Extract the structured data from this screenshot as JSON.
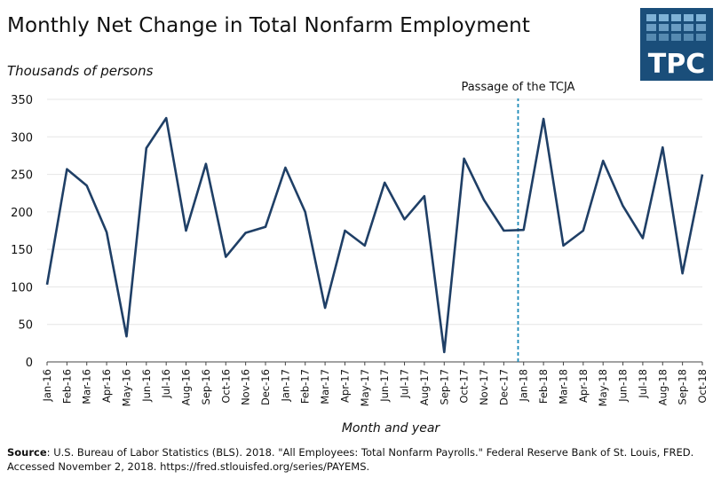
{
  "title": "Monthly Net Change in Total Nonfarm Employment",
  "logo": {
    "text": "TPC",
    "bg_color": "#1a4e7a",
    "cell_color": "#7fb2d6"
  },
  "source": {
    "label": "Source",
    "text": ": U.S. Bureau of Labor Statistics (BLS). 2018. \"All Employees: Total Nonfarm Payrolls.\" Federal Reserve Bank of St. Louis, FRED. Accessed November 2, 2018. https://fred.stlouisfed.org/series/PAYEMS."
  },
  "chart_data": {
    "type": "line",
    "title": "Monthly Net Change in Total Nonfarm Employment",
    "ylabel": "Thousands of persons",
    "xlabel": "Month and year",
    "ylim": [
      0,
      350
    ],
    "yticks": [
      0,
      50,
      100,
      150,
      200,
      250,
      300,
      350
    ],
    "grid": true,
    "line_color": "#1f3f66",
    "categories": [
      "Jan-16",
      "Feb-16",
      "Mar-16",
      "Apr-16",
      "May-16",
      "Jun-16",
      "Jul-16",
      "Aug-16",
      "Sep-16",
      "Oct-16",
      "Nov-16",
      "Dec-16",
      "Jan-17",
      "Feb-17",
      "Mar-17",
      "Apr-17",
      "May-17",
      "Jun-17",
      "Jul-17",
      "Aug-17",
      "Sep-17",
      "Oct-17",
      "Nov-17",
      "Dec-17",
      "Jan-18",
      "Feb-18",
      "Mar-18",
      "Apr-18",
      "May-18",
      "Jun-18",
      "Jul-18",
      "Aug-18",
      "Sep-18",
      "Oct-18"
    ],
    "series": [
      {
        "values": [
          103,
          257,
          235,
          173,
          34,
          285,
          325,
          175,
          264,
          140,
          172,
          180,
          259,
          200,
          72,
          175,
          155,
          239,
          190,
          221,
          13,
          271,
          216,
          175,
          176,
          324,
          155,
          175,
          268,
          208,
          165,
          286,
          118,
          250
        ]
      }
    ],
    "annotation": {
      "label": "Passage of the TCJA",
      "category": "Dec-17",
      "color": "#1e8bb8"
    }
  }
}
